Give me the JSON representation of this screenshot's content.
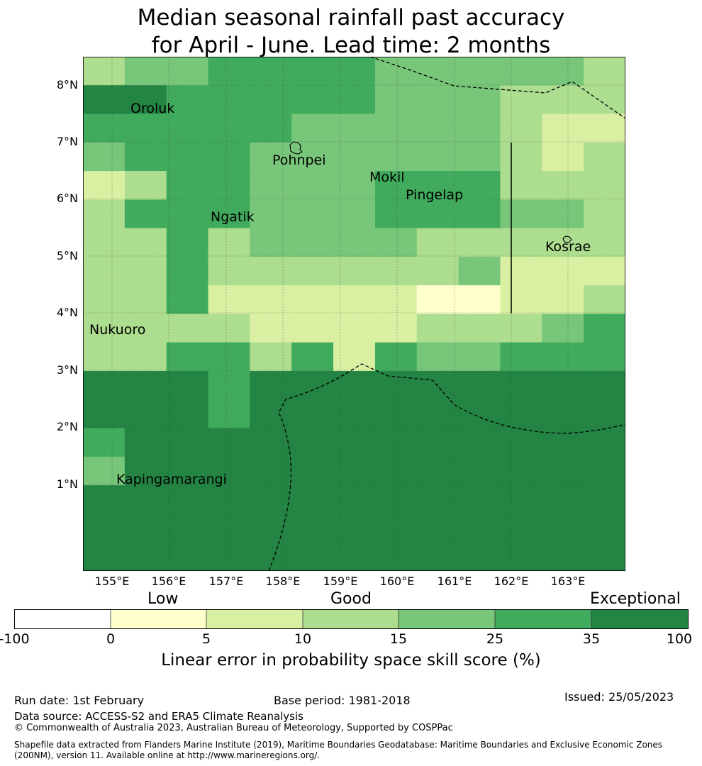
{
  "title": {
    "line1": "Median seasonal rainfall past accuracy",
    "line2": "for April - June. Lead time: 2 months"
  },
  "map": {
    "lat_ticks": [
      "8°N",
      "7°N",
      "6°N",
      "5°N",
      "4°N",
      "3°N",
      "2°N",
      "1°N"
    ],
    "lon_ticks": [
      "155°E",
      "156°E",
      "157°E",
      "158°E",
      "159°E",
      "160°E",
      "161°E",
      "162°E",
      "163°E"
    ],
    "places": [
      "Oroluk",
      "Pohnpei",
      "Mokil",
      "Pingelap",
      "Ngatik",
      "Kosrae",
      "Nukuoro",
      "Kapingamarangi"
    ],
    "grid_rows": [
      "3445555444443",
      "6655555444333",
      "5555544444322",
      "4555444444323",
      "2355444555333",
      "3555444555443",
      "3353444433333",
      "3353333334222",
      "3352222211223",
      "3333222233345",
      "3355352544555",
      "6665666666666",
      "6665666666666",
      "5666666666666",
      "4666666666666",
      "6666666666666",
      "6666666666666",
      "6666666666666"
    ],
    "colors": {
      "0": "#ffffff",
      "1": "#ffffcc",
      "2": "#d9f0a3",
      "3": "#addd8e",
      "4": "#78c679",
      "5": "#41ab5d",
      "6": "#238443"
    }
  },
  "colorbar": {
    "categories": [
      "Low",
      "Good",
      "Exceptional"
    ],
    "bounds": [
      "-100",
      "0",
      "5",
      "10",
      "15",
      "25",
      "35",
      "100"
    ],
    "label": "Linear error in probability space skill score (%)"
  },
  "footer": {
    "run_date": "Run date: 1st February",
    "base_period": "Base period: 1981-2018",
    "issued": "Issued: 25/05/2023",
    "data_source": "Data source: ACCESS-S2 and ERA5 Climate Reanalysis",
    "copyright": "© Commonwealth of Australia 2023, Australian Bureau of Meteorology, Supported by COSPPac",
    "shapefile_1": "Shapefile data extracted from Flanders Marine Institute (2019), Maritime Boundaries Geodatabase: Maritime Boundaries and Exclusive Economic Zones",
    "shapefile_2": "(200NM), version 11. Available online at http://www.marineregions.org/."
  }
}
